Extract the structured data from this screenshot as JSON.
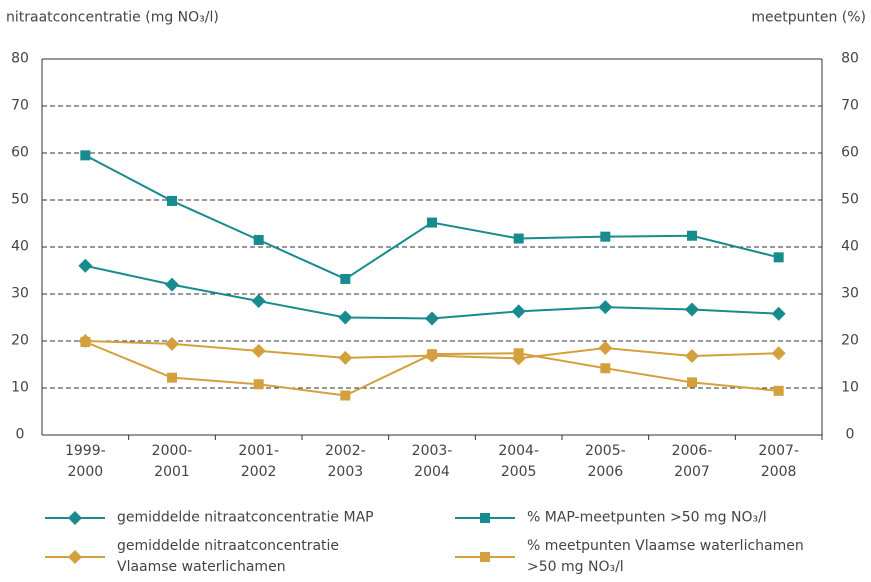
{
  "chart_data": {
    "type": "line",
    "y_label": "nitraatconcentratie (mg NO₃/l)",
    "y2_label": "meetpunten (%)",
    "categories": [
      "1999-\n2000",
      "2000-\n2001",
      "2001-\n2002",
      "2002-\n2003",
      "2003-\n2004",
      "2004-\n2005",
      "2005-\n2006",
      "2006-\n2007",
      "2007-\n2008"
    ],
    "series": [
      {
        "name": "gemiddelde nitraatconcentratie MAP",
        "color": "#178b8d",
        "marker": "diamond",
        "values": [
          36,
          32,
          28.5,
          25,
          24.8,
          26.3,
          27.2,
          26.7,
          25.8
        ]
      },
      {
        "name": "% MAP-meetpunten >50 mg NO₃/l",
        "color": "#178b8d",
        "marker": "square",
        "axis": "y2",
        "values": [
          59.5,
          49.8,
          41.5,
          33.2,
          45.2,
          41.8,
          42.2,
          42.4,
          37.8
        ]
      },
      {
        "name": "gemiddelde nitraatconcentratie\nVlaamse waterlichamen",
        "color": "#d4a03e",
        "marker": "diamond",
        "values": [
          20,
          19.4,
          17.9,
          16.4,
          16.9,
          16.3,
          18.5,
          16.8,
          17.4
        ]
      },
      {
        "name": "% meetpunten Vlaamse waterlichamen\n>50 mg NO₃/l",
        "color": "#d4a03e",
        "marker": "square",
        "axis": "y2",
        "values": [
          19.8,
          12.2,
          10.8,
          8.4,
          17.2,
          17.4,
          14.2,
          11.2,
          9.4
        ]
      }
    ],
    "ylim": [
      0,
      80
    ],
    "yticks": [
      0,
      10,
      20,
      30,
      40,
      50,
      60,
      70,
      80
    ],
    "y2lim": [
      0,
      80
    ],
    "y2ticks": [
      0,
      10,
      20,
      30,
      40,
      50,
      60,
      70,
      80
    ],
    "grid": true
  }
}
